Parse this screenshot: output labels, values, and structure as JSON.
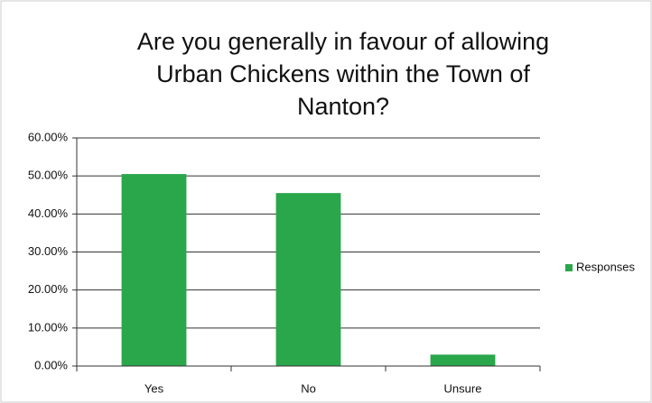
{
  "chart_data": {
    "type": "bar",
    "title": [
      "Are you generally  in favour of allowing",
      "Urban Chickens within the Town of",
      "Nanton?"
    ],
    "categories": [
      "Yes",
      "No",
      "Unsure"
    ],
    "series": [
      {
        "name": "Responses",
        "color": "#2aa64b",
        "values": [
          50.5,
          45.5,
          3
        ]
      }
    ],
    "ylim": [
      0,
      60
    ],
    "yticks": [
      {
        "value": 0,
        "label": "0.00%"
      },
      {
        "value": 10,
        "label": "10.00%"
      },
      {
        "value": 20,
        "label": "20.00%"
      },
      {
        "value": 30,
        "label": "30.00%"
      },
      {
        "value": 40,
        "label": "40.00%"
      },
      {
        "value": 50,
        "label": "50.00%"
      },
      {
        "value": 60,
        "label": "60.00%"
      }
    ],
    "grid": true,
    "legend": "right"
  }
}
